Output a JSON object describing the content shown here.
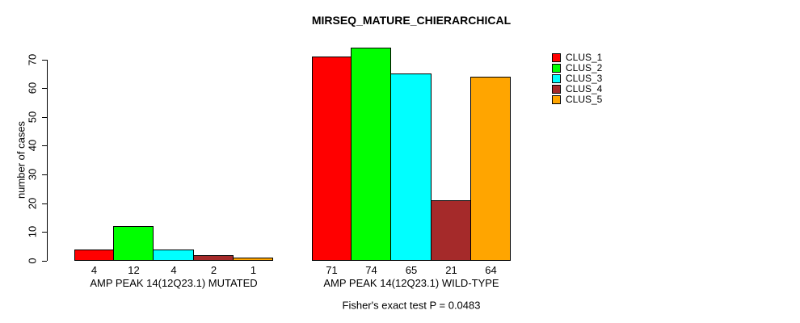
{
  "chart_data": {
    "type": "bar",
    "title": "MIRSEQ_MATURE_CHIERARCHICAL",
    "ylabel": "number of cases",
    "xlabel": "",
    "ylim": [
      0,
      74
    ],
    "yticks": [
      0,
      10,
      20,
      30,
      40,
      50,
      60,
      70
    ],
    "grid": false,
    "legend_position": "top-right",
    "legend": [
      {
        "label": "CLUS_1",
        "color": "#FF0000"
      },
      {
        "label": "CLUS_2",
        "color": "#00FF00"
      },
      {
        "label": "CLUS_3",
        "color": "#00FFFF"
      },
      {
        "label": "CLUS_4",
        "color": "#A52A2A"
      },
      {
        "label": "CLUS_5",
        "color": "#FFA500"
      }
    ],
    "groups": [
      {
        "label": "AMP PEAK 14(12Q23.1) MUTATED",
        "bar_labels": [
          "4",
          "12",
          "4",
          "2",
          "1"
        ],
        "values": [
          4,
          12,
          4,
          2,
          1
        ]
      },
      {
        "label": "AMP PEAK 14(12Q23.1) WILD-TYPE",
        "bar_labels": [
          "71",
          "74",
          "65",
          "21",
          "64"
        ],
        "values": [
          71,
          74,
          65,
          21,
          64
        ]
      }
    ],
    "annotation": "Fisher's exact test P = 0.0483"
  }
}
